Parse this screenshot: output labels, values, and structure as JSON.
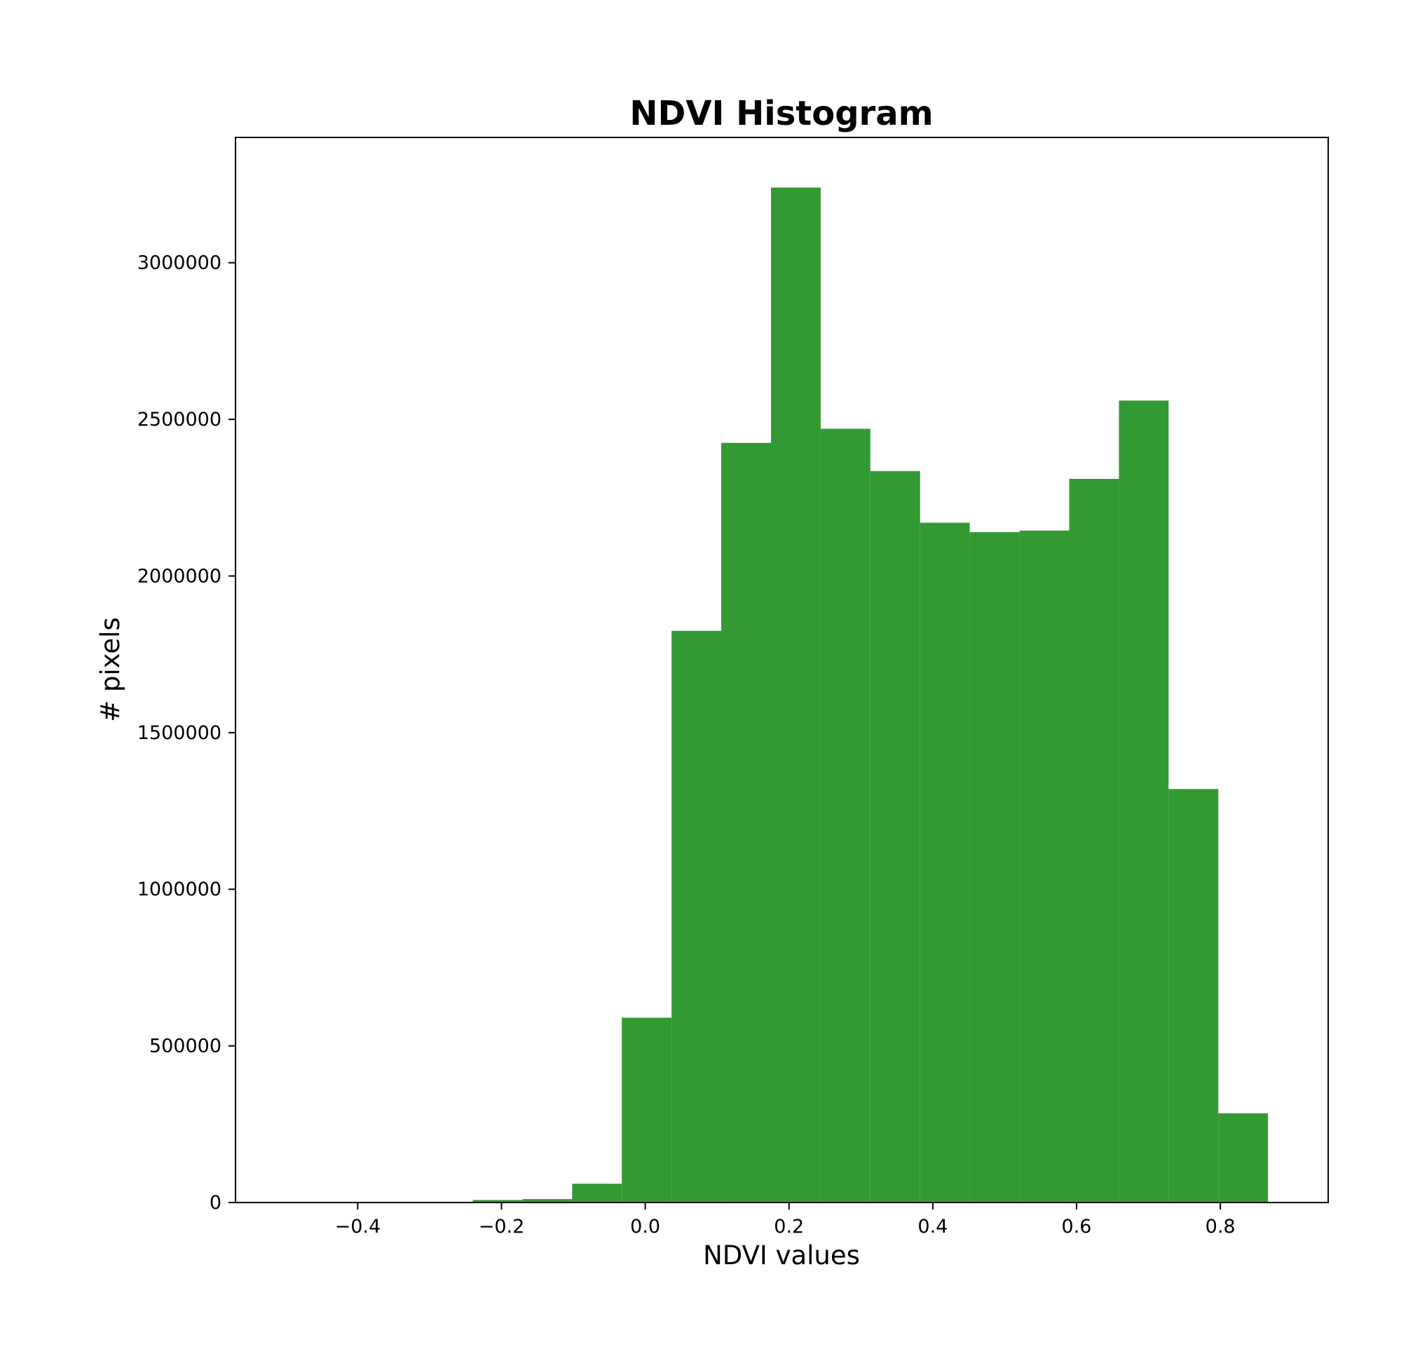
{
  "chart_data": {
    "type": "bar",
    "title": "NDVI Histogram",
    "xlabel": "NDVI values",
    "ylabel": "# pixels",
    "xlim": [
      -0.57,
      0.95
    ],
    "ylim": [
      0,
      3400000
    ],
    "grid": false,
    "x_ticks": [
      {
        "value": -0.4,
        "label": "−0.4"
      },
      {
        "value": -0.2,
        "label": "−0.2"
      },
      {
        "value": 0.0,
        "label": "0.0"
      },
      {
        "value": 0.2,
        "label": "0.2"
      },
      {
        "value": 0.4,
        "label": "0.4"
      },
      {
        "value": 0.6,
        "label": "0.6"
      },
      {
        "value": 0.8,
        "label": "0.8"
      }
    ],
    "y_ticks": [
      {
        "value": 0,
        "label": "0"
      },
      {
        "value": 500000,
        "label": "500000"
      },
      {
        "value": 1000000,
        "label": "1000000"
      },
      {
        "value": 1500000,
        "label": "1500000"
      },
      {
        "value": 2000000,
        "label": "2000000"
      },
      {
        "value": 2500000,
        "label": "2500000"
      },
      {
        "value": 3000000,
        "label": "3000000"
      }
    ],
    "bar_color": "#339933",
    "bins": [
      {
        "x0": -0.5166,
        "x1": -0.4474,
        "value": 300
      },
      {
        "x0": -0.4474,
        "x1": -0.3783,
        "value": 300
      },
      {
        "x0": -0.3783,
        "x1": -0.3091,
        "value": 600
      },
      {
        "x0": -0.3091,
        "x1": -0.24,
        "value": 1500
      },
      {
        "x0": -0.24,
        "x1": -0.1709,
        "value": 8000
      },
      {
        "x0": -0.1709,
        "x1": -0.1017,
        "value": 11000
      },
      {
        "x0": -0.1017,
        "x1": -0.0326,
        "value": 60000
      },
      {
        "x0": -0.0326,
        "x1": 0.0366,
        "value": 590000
      },
      {
        "x0": 0.0366,
        "x1": 0.1057,
        "value": 1825000
      },
      {
        "x0": 0.1057,
        "x1": 0.1749,
        "value": 2425000
      },
      {
        "x0": 0.1749,
        "x1": 0.244,
        "value": 3240000
      },
      {
        "x0": 0.244,
        "x1": 0.3131,
        "value": 2470000
      },
      {
        "x0": 0.3131,
        "x1": 0.3823,
        "value": 2335000
      },
      {
        "x0": 0.3823,
        "x1": 0.4514,
        "value": 2170000
      },
      {
        "x0": 0.4514,
        "x1": 0.5206,
        "value": 2140000
      },
      {
        "x0": 0.5206,
        "x1": 0.5897,
        "value": 2145000
      },
      {
        "x0": 0.5897,
        "x1": 0.6589,
        "value": 2310000
      },
      {
        "x0": 0.6589,
        "x1": 0.728,
        "value": 2560000
      },
      {
        "x0": 0.728,
        "x1": 0.7971,
        "value": 1320000
      },
      {
        "x0": 0.7971,
        "x1": 0.8663,
        "value": 285000
      }
    ]
  }
}
